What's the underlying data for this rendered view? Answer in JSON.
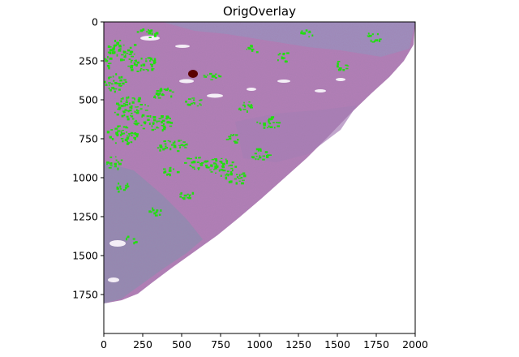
{
  "figure": {
    "title": "OrigOverlay"
  },
  "axes": {
    "x_ticks": [
      "0",
      "250",
      "500",
      "750",
      "1000",
      "1250",
      "1500",
      "1750",
      "2000"
    ],
    "y_ticks": [
      "0",
      "250",
      "500",
      "750",
      "1000",
      "1250",
      "1500",
      "1750"
    ],
    "x_range": [
      0,
      2000
    ],
    "y_range": [
      0,
      2000
    ],
    "y_inverted": true
  },
  "image": {
    "content": "histology tissue section overlay",
    "tissue_color": "#b47fb8",
    "stroma_color": "#8f8fb4",
    "overlay_color": "#22dd11",
    "marker_color": "#5a0000",
    "background_color": "#ffffff"
  }
}
